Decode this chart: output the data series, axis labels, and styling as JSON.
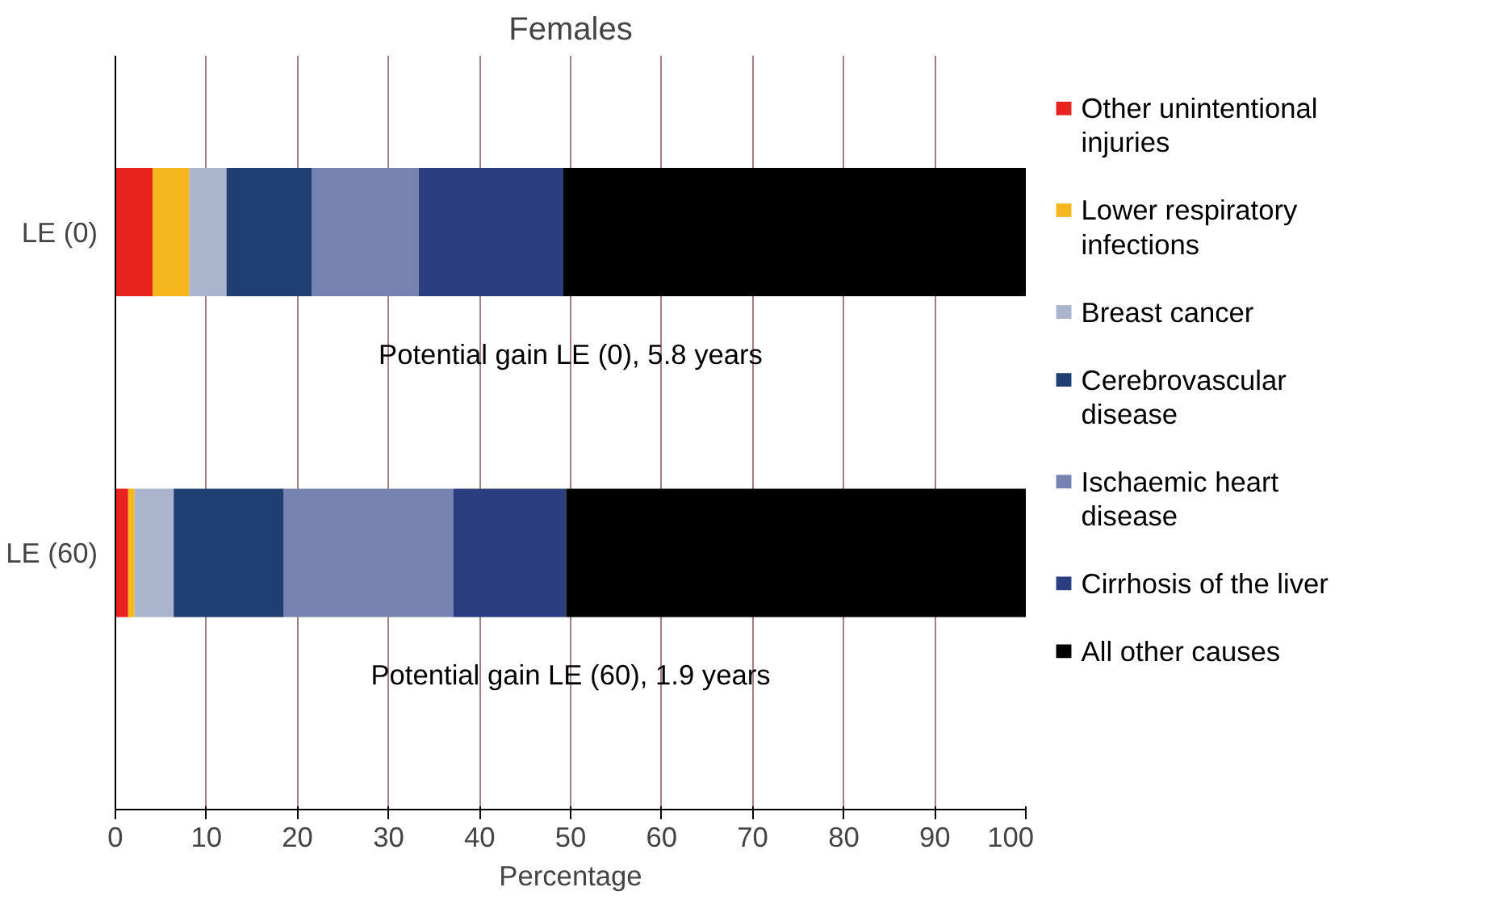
{
  "chart_data": {
    "type": "bar",
    "orientation": "horizontal",
    "stacked": true,
    "title": "Females",
    "xlabel": "Percentage",
    "categories": [
      "LE (0)",
      "LE (60)"
    ],
    "series": [
      {
        "name": "Other unintentional injuries",
        "color": "#e8231e",
        "values": [
          4.1,
          1.4
        ]
      },
      {
        "name": "Lower respiratory infections",
        "color": "#f5b71b",
        "values": [
          4.0,
          0.7
        ]
      },
      {
        "name": "Breast cancer",
        "color": "#aab4cc",
        "values": [
          4.1,
          4.3
        ]
      },
      {
        "name": "Cerebrovascular disease",
        "color": "#1f3f73",
        "values": [
          9.4,
          12.1
        ]
      },
      {
        "name": "Ischaemic heart disease",
        "color": "#7683b0",
        "values": [
          11.7,
          18.6
        ]
      },
      {
        "name": "Cirrhosis of the liver",
        "color": "#2b3f80",
        "values": [
          15.9,
          12.4
        ]
      },
      {
        "name": "All other causes",
        "color": "#000000",
        "values": [
          50.8,
          50.5
        ]
      }
    ],
    "annotations": [
      "Potential gain LE (0), 5.8 years",
      "Potential gain LE (60), 1.9 years"
    ],
    "xlim": [
      0,
      100
    ],
    "xticks": [
      0,
      10,
      20,
      30,
      40,
      50,
      60,
      70,
      80,
      90,
      100
    ],
    "grid": "x",
    "legend": "right"
  }
}
